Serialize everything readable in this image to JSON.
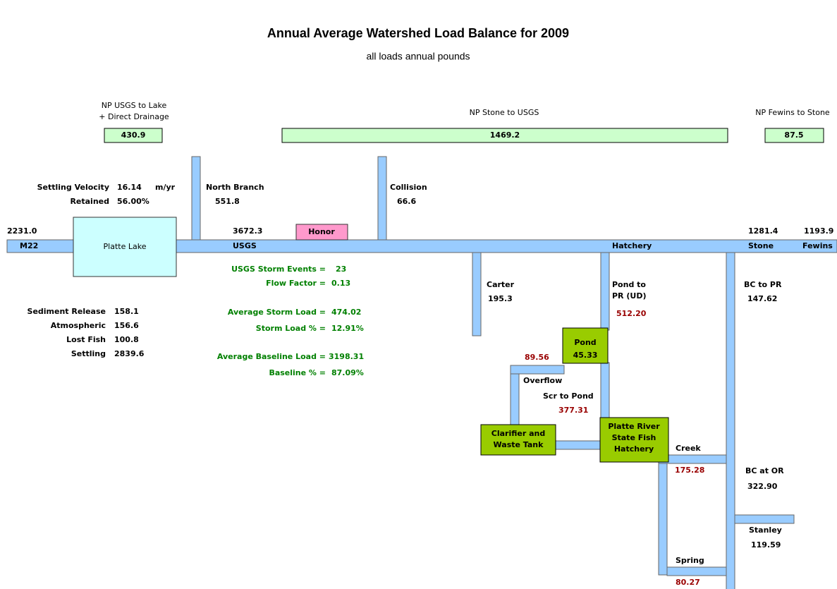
{
  "header": {
    "title": "Annual Average Watershed Load Balance for 2009",
    "subtitle": "all loads annual pounds"
  },
  "top_loads": [
    {
      "name_lines": [
        "NP USGS to Lake",
        "+ Direct Drainage"
      ],
      "value": "430.9"
    },
    {
      "name_lines": [
        "NP Stone to USGS"
      ],
      "value": "1469.2"
    },
    {
      "name_lines": [
        "NP Fewins to Stone"
      ],
      "value": "87.5"
    }
  ],
  "main_stem": {
    "stations": [
      "M22",
      "USGS",
      "Hatchery",
      "Stone",
      "Fewins"
    ],
    "loads": [
      "2231.0",
      "3672.3",
      "1281.4",
      "1193.9"
    ],
    "lake": "Platte Lake",
    "honor": "Honor"
  },
  "lake_params": [
    {
      "label": "Settling Velocity",
      "value": "16.14",
      "unit": "m/yr"
    },
    {
      "label": "Retained",
      "value": "56.00%"
    }
  ],
  "lake_budget": [
    {
      "label": "Sediment Release",
      "value": "158.1"
    },
    {
      "label": "Atmospheric",
      "value": "156.6"
    },
    {
      "label": "Lost Fish",
      "value": "100.8"
    },
    {
      "label": "Settling",
      "value": "2839.6"
    }
  ],
  "storm_stats": [
    {
      "label": "USGS Storm Events =",
      "value": "23"
    },
    {
      "label": "Flow Factor =",
      "value": "0.13"
    },
    {
      "label": "Average Storm Load =",
      "value": "474.02"
    },
    {
      "label": "Storm Load % =",
      "value": "12.91%"
    },
    {
      "label": "Average Baseline Load =",
      "value": "3198.31"
    },
    {
      "label": "Baseline % =",
      "value": "87.09%"
    }
  ],
  "tributaries": [
    {
      "name_lines": [
        "North Branch"
      ],
      "value": "551.8"
    },
    {
      "name_lines": [
        "Collision"
      ],
      "value": "66.6"
    },
    {
      "name_lines": [
        "Carter"
      ],
      "value": "195.3"
    },
    {
      "name_lines": [
        "Pond to",
        "PR (UD)"
      ],
      "value": "512.20"
    },
    {
      "name_lines": [
        "BC to PR"
      ],
      "value": "147.62"
    },
    {
      "name_lines": [
        "BC at OR"
      ],
      "value": "322.90"
    },
    {
      "name_lines": [
        "Stanley"
      ],
      "value": "119.59"
    }
  ],
  "hatchery": {
    "pond": {
      "name": "Pond",
      "value": "45.33"
    },
    "pond_overflow_load": "89.56",
    "overflow": "Overflow",
    "screen": {
      "name": "Scr to Pond",
      "value": "377.31"
    },
    "clarifier": [
      "Clarifier and",
      "Waste Tank"
    ],
    "hatchery_box": [
      "Platte River",
      "State Fish",
      "Hatchery"
    ],
    "creek": {
      "name": "Creek",
      "value": "175.28"
    },
    "spring": {
      "name": "Spring",
      "value": "80.27"
    }
  }
}
